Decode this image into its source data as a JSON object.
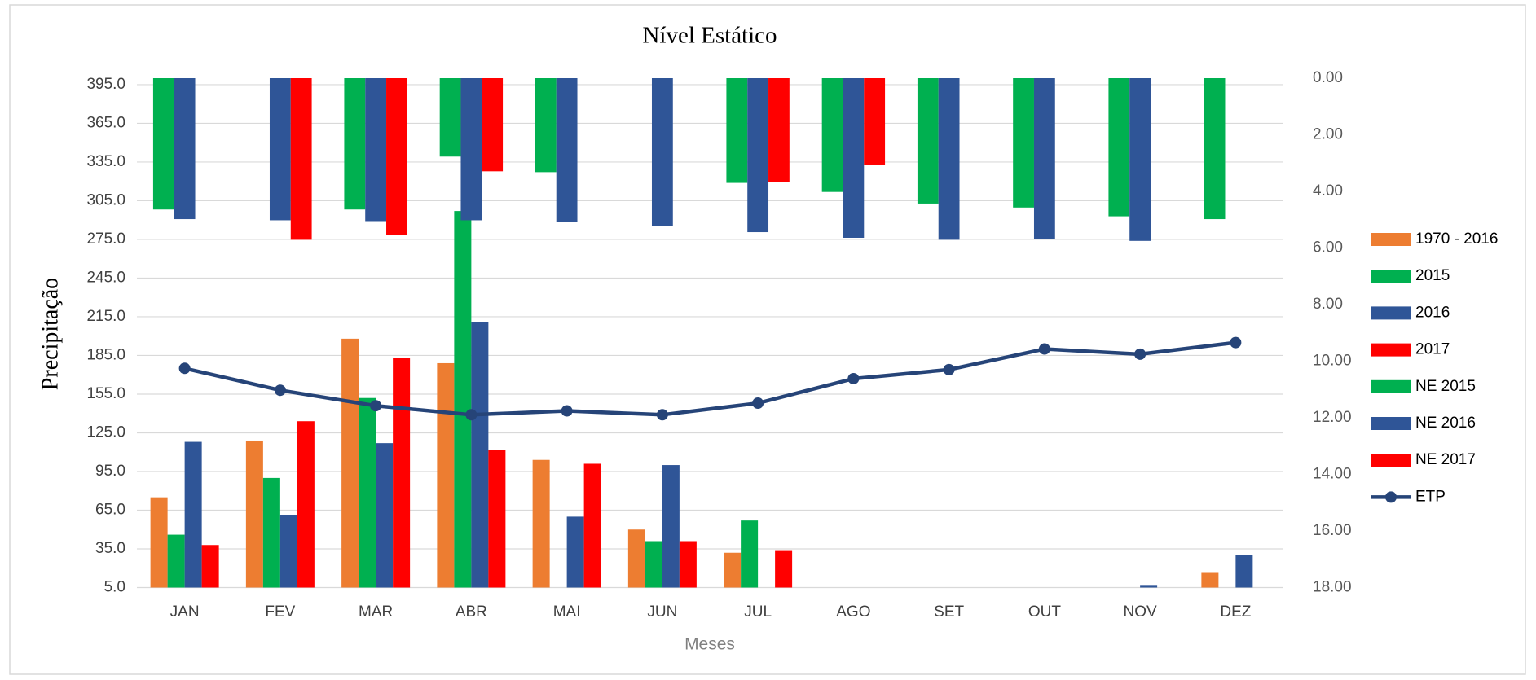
{
  "chart_data": {
    "type": "bar",
    "title": "Nível Estático",
    "y_label": "Precipitação",
    "x_label": "Meses",
    "categories": [
      "JAN",
      "FEV",
      "MAR",
      "ABR",
      "MAI",
      "JUN",
      "JUL",
      "AGO",
      "SET",
      "OUT",
      "NOV",
      "DEZ"
    ],
    "ylim": [
      5,
      400
    ],
    "yticks": [
      {
        "value": 5,
        "label": "5.0"
      },
      {
        "value": 35,
        "label": "35.0"
      },
      {
        "value": 65,
        "label": "65.0"
      },
      {
        "value": 95,
        "label": "95.0"
      },
      {
        "value": 125,
        "label": "125.0"
      },
      {
        "value": 155,
        "label": "155.0"
      },
      {
        "value": 185,
        "label": "185.0"
      },
      {
        "value": 215,
        "label": "215.0"
      },
      {
        "value": 245,
        "label": "245.0"
      },
      {
        "value": 275,
        "label": "275.0"
      },
      {
        "value": 305,
        "label": "305.0"
      },
      {
        "value": 335,
        "label": "335.0"
      },
      {
        "value": 365,
        "label": "365.0"
      },
      {
        "value": 395,
        "label": "395.0"
      }
    ],
    "y2lim": [
      0,
      18
    ],
    "y2_reversed": true,
    "y2ticks": [
      {
        "value": 0,
        "label": "0.00"
      },
      {
        "value": 2,
        "label": "2.00"
      },
      {
        "value": 4,
        "label": "4.00"
      },
      {
        "value": 6,
        "label": "6.00"
      },
      {
        "value": 8,
        "label": "8.00"
      },
      {
        "value": 10,
        "label": "10.00"
      },
      {
        "value": 12,
        "label": "12.00"
      },
      {
        "value": 14,
        "label": "14.00"
      },
      {
        "value": 16,
        "label": "16.00"
      },
      {
        "value": 18,
        "label": "18.00"
      }
    ],
    "grid": true,
    "legend": "right",
    "series": [
      {
        "name": "1970 - 2016",
        "color": "#ed7d31",
        "values": [
          75,
          119,
          198,
          179,
          104,
          50,
          32,
          null,
          null,
          null,
          null,
          17
        ]
      },
      {
        "name": "2015",
        "color": "#00b050",
        "values": [
          46,
          90,
          152,
          297,
          null,
          41,
          57,
          null,
          null,
          null,
          null,
          null
        ]
      },
      {
        "name": "2016",
        "color": "#2f5597",
        "values": [
          118,
          61,
          117,
          211,
          60,
          100,
          null,
          null,
          null,
          null,
          7,
          30
        ]
      },
      {
        "name": "2017",
        "color": "#ff0000",
        "values": [
          38,
          134,
          183,
          112,
          101,
          41,
          34,
          null,
          null,
          null,
          null,
          null
        ]
      },
      {
        "name": "NE 2015",
        "color": "#00b050",
        "axis": "y2",
        "values": [
          4.64,
          null,
          4.64,
          2.77,
          3.32,
          null,
          3.7,
          4.02,
          4.43,
          4.57,
          4.88,
          4.98
        ]
      },
      {
        "name": "NE 2016",
        "color": "#2f5597",
        "axis": "y2",
        "values": [
          4.98,
          5.02,
          5.05,
          5.02,
          5.09,
          5.23,
          5.44,
          5.64,
          5.71,
          5.68,
          5.75,
          null
        ]
      },
      {
        "name": "NE 2017",
        "color": "#ff0000",
        "axis": "y2",
        "values": [
          null,
          5.71,
          5.54,
          3.29,
          null,
          null,
          3.67,
          3.05,
          null,
          null,
          null,
          null
        ]
      },
      {
        "name": "ETP",
        "color": "#264478",
        "type": "line",
        "values": [
          175,
          158,
          146,
          139,
          142,
          139,
          148,
          167,
          174,
          190,
          186,
          195
        ]
      }
    ]
  }
}
